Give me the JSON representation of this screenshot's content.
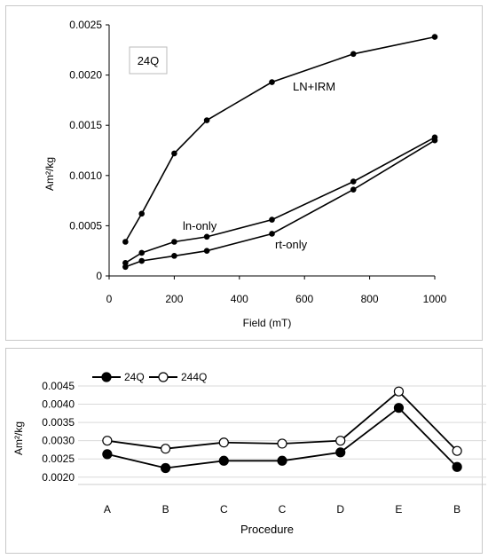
{
  "chart_data": [
    {
      "type": "line",
      "title": "",
      "badge": "24Q",
      "xlabel": "Field (mT)",
      "ylabel": "Am²/kg",
      "xlim": [
        0,
        1000
      ],
      "ylim": [
        0,
        0.0025
      ],
      "x_ticks": [
        "0",
        "200",
        "400",
        "600",
        "800",
        "1000"
      ],
      "y_ticks": [
        "0",
        "0.0005",
        "0.0010",
        "0.0015",
        "0.0020",
        "0.0025"
      ],
      "grid": false,
      "series": [
        {
          "name": "LN+IRM",
          "x": [
            50,
            100,
            200,
            300,
            500,
            750,
            1000
          ],
          "y": [
            0.00034,
            0.00062,
            0.00122,
            0.00155,
            0.00193,
            0.00221,
            0.00238
          ]
        },
        {
          "name": "ln-only",
          "x": [
            50,
            100,
            200,
            300,
            500,
            750,
            1000
          ],
          "y": [
            0.00013,
            0.00023,
            0.00034,
            0.00039,
            0.00056,
            0.00094,
            0.00138
          ]
        },
        {
          "name": "rt-only",
          "x": [
            50,
            100,
            200,
            300,
            500,
            750,
            1000
          ],
          "y": [
            9e-05,
            0.00015,
            0.0002,
            0.00025,
            0.00042,
            0.00086,
            0.00135
          ]
        }
      ]
    },
    {
      "type": "line",
      "title": "",
      "xlabel": "Procedure",
      "ylabel": "Am²/kg",
      "categories": [
        "A",
        "B",
        "C",
        "C",
        "D",
        "E",
        "B"
      ],
      "ylim": [
        0.0018,
        0.0045
      ],
      "y_ticks": [
        "0.0020",
        "0.0025",
        "0.0030",
        "0.0035",
        "0.0040",
        "0.0045"
      ],
      "grid": true,
      "legend": "top-left",
      "series": [
        {
          "name": "24Q",
          "marker": "filled",
          "values": [
            0.00263,
            0.00225,
            0.00245,
            0.00245,
            0.00268,
            0.0039,
            0.00228
          ]
        },
        {
          "name": "244Q",
          "marker": "open",
          "values": [
            0.003,
            0.00278,
            0.00295,
            0.00292,
            0.003,
            0.00435,
            0.00272
          ]
        }
      ]
    }
  ]
}
